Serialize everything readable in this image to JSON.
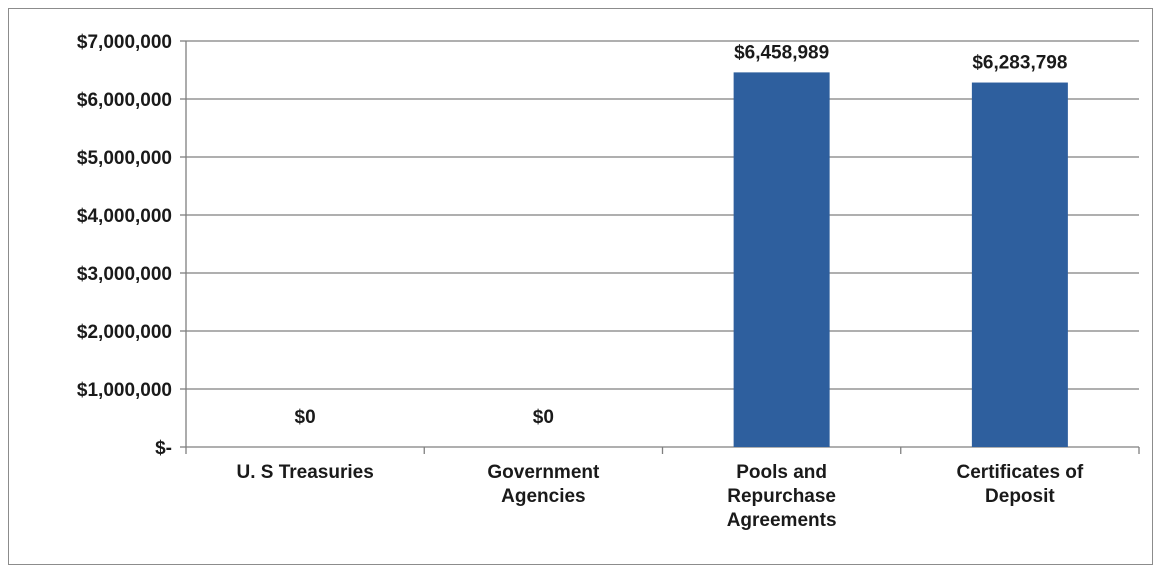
{
  "chart_data": {
    "type": "bar",
    "title": "",
    "xlabel": "",
    "ylabel": "",
    "categories": [
      [
        "U. S Treasuries"
      ],
      [
        "Government",
        "Agencies"
      ],
      [
        "Pools and",
        "Repurchase",
        "Agreements"
      ],
      [
        "Certificates of",
        "Deposit"
      ]
    ],
    "values": [
      0,
      0,
      6458989,
      6283798
    ],
    "data_labels": [
      "$0",
      "$0",
      "$6,458,989",
      "$6,283,798"
    ],
    "ylim": [
      0,
      7000000
    ],
    "yticks": [
      0,
      1000000,
      2000000,
      3000000,
      4000000,
      5000000,
      6000000,
      7000000
    ],
    "ytick_labels": [
      "$-",
      "$1,000,000",
      "$2,000,000",
      "$3,000,000",
      "$4,000,000",
      "$5,000,000",
      "$6,000,000",
      "$7,000,000"
    ],
    "grid": true,
    "legend": "none",
    "bar_color": "#2e5f9e",
    "grid_color": "#7f7f7f"
  }
}
